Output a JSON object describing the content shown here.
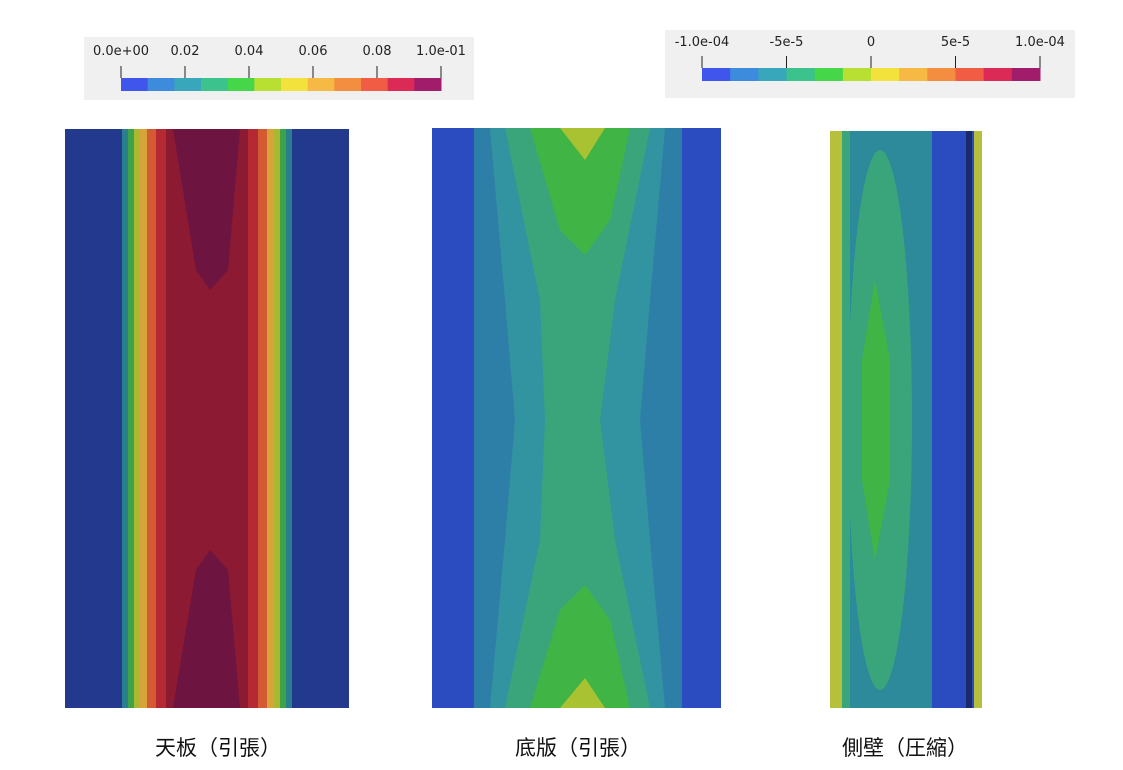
{
  "legends": [
    {
      "ticks": [
        "0.0e+00",
        "0.02",
        "0.04",
        "0.06",
        "0.08",
        "1.0e-01"
      ],
      "colors": [
        "#3f55ec",
        "#3d8bdc",
        "#38a6bb",
        "#3cc28c",
        "#45d64a",
        "#b7e032",
        "#f4e23c",
        "#f6b943",
        "#f38d40",
        "#f05c44",
        "#dc2a56",
        "#a21c6c"
      ]
    },
    {
      "ticks": [
        "-1.0e-04",
        "-5e-5",
        "0",
        "5e-5",
        "1.0e-04"
      ],
      "colors": [
        "#3f55ec",
        "#3d8bdc",
        "#38a6bb",
        "#3cc28c",
        "#45d64a",
        "#b7e032",
        "#f4e23c",
        "#f6b943",
        "#f38d40",
        "#f05c44",
        "#dc2a56",
        "#a21c6c"
      ]
    }
  ],
  "panels": [
    {
      "caption": "天板（引張）"
    },
    {
      "caption": "底版（引張）"
    },
    {
      "caption": "側壁（圧縮）"
    }
  ]
}
